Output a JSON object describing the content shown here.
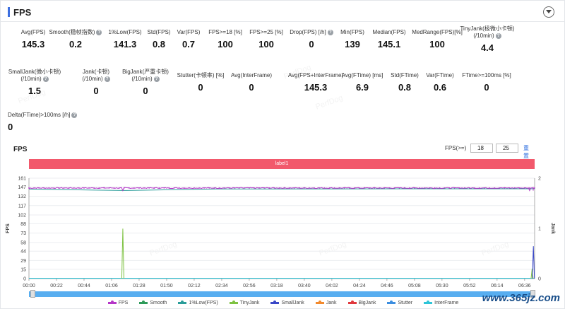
{
  "header": {
    "title": "FPS"
  },
  "metrics_row1": [
    {
      "label": "Avg(FPS)",
      "value": "145.3",
      "help": false
    },
    {
      "label": "Smooth(稳帧指数)",
      "value": "0.2",
      "help": true
    },
    {
      "label": "1%Low(FPS)",
      "value": "141.3",
      "help": false
    },
    {
      "label": "Std(FPS)",
      "value": "0.8",
      "help": false
    },
    {
      "label": "Var(FPS)",
      "value": "0.7",
      "help": false
    },
    {
      "label": "FPS>=18 [%]",
      "value": "100",
      "help": false
    },
    {
      "label": "FPS>=25 [%]",
      "value": "100",
      "help": false
    },
    {
      "label": "Drop(FPS) [/h]",
      "value": "0",
      "help": true
    },
    {
      "label": "Min(FPS)",
      "value": "139",
      "help": false
    },
    {
      "label": "Median(FPS)",
      "value": "145.1",
      "help": false
    },
    {
      "label": "MedRange(FPS)[%]",
      "value": "100",
      "help": false
    },
    {
      "label": "TinyJank(极微小卡顿)",
      "label2": "(/10min)",
      "value": "4.4",
      "help": true
    }
  ],
  "metrics_row2": [
    {
      "label": "SmallJank(微小卡顿)",
      "label2": "(/10min)",
      "value": "1.5",
      "help": true
    },
    {
      "label": "Jank(卡顿)",
      "label2": "(/10min)",
      "value": "0",
      "help": true
    },
    {
      "label": "BigJank(严重卡顿)",
      "label2": "(/10min)",
      "value": "0",
      "help": true
    },
    {
      "label": "Stutter(卡顿率) [%]",
      "value": "0",
      "help": false
    },
    {
      "label": "Avg(InterFrame)",
      "value": "0",
      "help": false
    },
    {
      "label": "Avg(FPS+InterFrame)",
      "value": "145.3",
      "help": false
    },
    {
      "label": "Avg(FTime) [ms]",
      "value": "6.9",
      "help": false
    },
    {
      "label": "Std(FTime)",
      "value": "0.8",
      "help": false
    },
    {
      "label": "Var(FTime)",
      "value": "0.6",
      "help": false
    },
    {
      "label": "FTime>=100ms [%]",
      "value": "0",
      "help": false
    }
  ],
  "metrics_row3": [
    {
      "label": "Delta(FTime)>100ms [/h]",
      "value": "0",
      "help": true
    }
  ],
  "chart_header": {
    "title": "FPS",
    "threshold_label": "FPS(>=)",
    "threshold_1": "18",
    "threshold_2": "25",
    "reset_label": "重置"
  },
  "label_band": "label1",
  "watermark": "PerfDog",
  "site_mark": "www.365jz.com",
  "chart_data": {
    "type": "line",
    "x": [
      "00:00",
      "00:22",
      "00:44",
      "01:06",
      "01:28",
      "01:50",
      "02:12",
      "02:34",
      "02:56",
      "03:18",
      "03:40",
      "04:02",
      "04:24",
      "04:46",
      "05:08",
      "05:30",
      "05:52",
      "06:14",
      "06:36"
    ],
    "x_end": "06:44",
    "ylabel": "FPS",
    "y_ticks": [
      0,
      15,
      29,
      44,
      58,
      73,
      88,
      102,
      117,
      132,
      147,
      161
    ],
    "ylim": [
      0,
      161
    ],
    "y2label": "Jank",
    "y2_ticks": [
      0,
      1,
      2
    ],
    "y2lim": [
      0,
      2
    ],
    "series": [
      {
        "name": "FPS",
        "color": "#b536c8",
        "baseline": 145.3,
        "dips": [
          [
            0,
            144
          ],
          [
            75,
            141
          ],
          [
            129,
            145
          ],
          [
            400,
            141
          ]
        ]
      },
      {
        "name": "Smooth",
        "color": "#2e9b5a",
        "values": "flat-zero"
      },
      {
        "name": "1%Low(FPS)",
        "color": "#2a9d9a",
        "segments": [
          [
            0,
            143.5
          ],
          [
            75,
            141.3
          ],
          [
            78,
            141.3
          ],
          [
            150,
            143.6
          ],
          [
            300,
            144
          ],
          [
            404,
            144
          ]
        ]
      },
      {
        "name": "TinyJank",
        "color": "#7ec242",
        "spikes": [
          [
            75,
            80
          ],
          [
            402,
            16
          ]
        ]
      },
      {
        "name": "SmallJank",
        "color": "#3a48c7",
        "spikes": [
          [
            403,
            52
          ]
        ]
      },
      {
        "name": "Jank",
        "color": "#f28a2e",
        "values": "flat-zero"
      },
      {
        "name": "BigJank",
        "color": "#e0393e",
        "values": "flat-zero"
      },
      {
        "name": "Stutter",
        "color": "#3c8ee0",
        "values": "flat-zero"
      },
      {
        "name": "InterFrame",
        "color": "#2ec5d8",
        "values": "flat-zero"
      }
    ],
    "grid": true,
    "legend": "bottom"
  }
}
